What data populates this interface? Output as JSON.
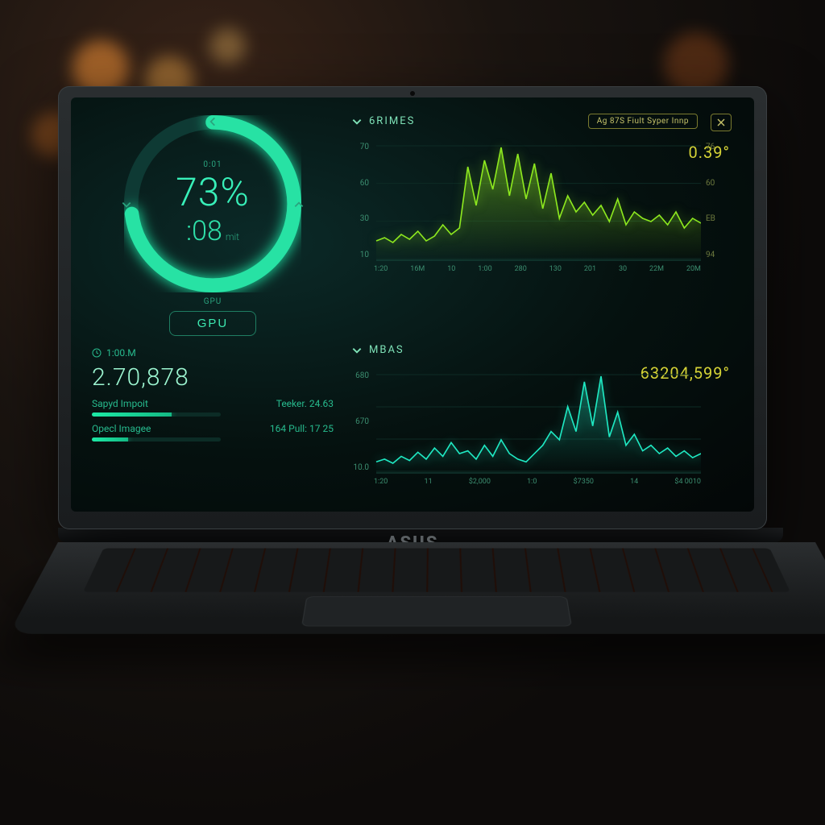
{
  "colors": {
    "accent_teal": "#27e2a4",
    "accent_teal_glow": "#1fe9aa",
    "chart_green": "#8de81f",
    "chart_teal": "#1fe8c2",
    "value_yellow": "#d5d336",
    "screen_bg_center": "#0b2a28",
    "screen_bg_edge": "#030707",
    "text_dim": "#2aa37e"
  },
  "gauge": {
    "small_label": "0:01",
    "percent": "73%",
    "percent_value": 73,
    "sub": ":08",
    "sub_unit": "mit",
    "btn_small": "GPU",
    "btn_label": "GPU",
    "ring_stroke_width": 16,
    "ring_radius": 92
  },
  "stats": {
    "clock_icon": "clock-icon",
    "clock": "1:00.M",
    "big": "2.70,878",
    "rows": [
      {
        "label": "Sapyd Impoit",
        "value": "Teeker. 24.63",
        "pct": 62
      },
      {
        "label": "Opecl Imagee",
        "value": "164 Pull: 17 25",
        "pct": 28
      }
    ]
  },
  "panel_top": {
    "title": "6RIMES",
    "badge": "Ag 87S Fiult Syper Innp",
    "value": "0.39°",
    "y_left": [
      "70",
      "60",
      "30",
      "10"
    ],
    "y_right": [
      "76",
      "60",
      "EB",
      "94"
    ],
    "x": [
      "1:20",
      "16M",
      "10",
      "1:00",
      "280",
      "130",
      "201",
      "30",
      "22M",
      "20M"
    ],
    "line_color": "#8de81f",
    "area_opacity": 0.45,
    "type": "area-line",
    "series": [
      12,
      14,
      11,
      16,
      13,
      18,
      12,
      15,
      22,
      16,
      20,
      58,
      34,
      62,
      44,
      70,
      40,
      66,
      38,
      60,
      32,
      54,
      26,
      40,
      30,
      36,
      28,
      34,
      24,
      38,
      22,
      30,
      26,
      24,
      28,
      22,
      30,
      20,
      26,
      23
    ]
  },
  "panel_bot": {
    "title": "MBAS",
    "value": "63204,599°",
    "y_left": [
      "680",
      "670",
      "10.0"
    ],
    "x": [
      "1:20",
      "11",
      "$2,000",
      "1:0",
      "$7350",
      "14",
      "$4 0010"
    ],
    "line_color": "#1fe8c2",
    "area_opacity": 0.35,
    "type": "area-line",
    "series": [
      8,
      10,
      7,
      12,
      9,
      15,
      10,
      18,
      12,
      22,
      14,
      16,
      10,
      20,
      12,
      24,
      14,
      10,
      8,
      14,
      20,
      30,
      24,
      48,
      30,
      66,
      34,
      70,
      26,
      44,
      20,
      28,
      16,
      20,
      14,
      18,
      12,
      16,
      11,
      14
    ]
  },
  "brand": "ASUS"
}
